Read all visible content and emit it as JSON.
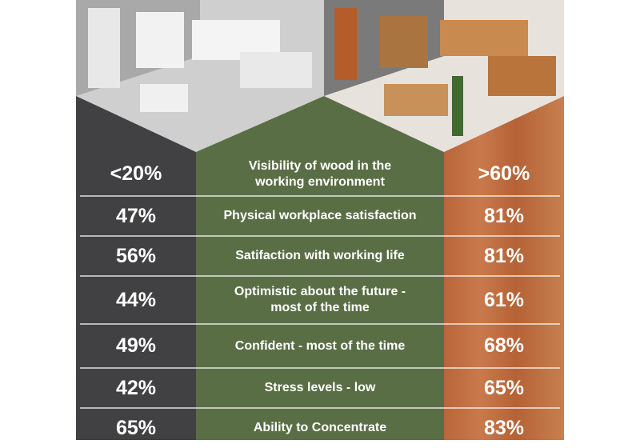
{
  "table": {
    "header": {
      "left": "<20%",
      "label": "Visibility of wood in the\nworking environment",
      "right": ">60%"
    },
    "rows": [
      {
        "left": "47%",
        "label": "Physical workplace satisfaction",
        "right": "81%"
      },
      {
        "left": "56%",
        "label": "Satifaction with working life",
        "right": "81%"
      },
      {
        "left": "44%",
        "label": "Optimistic about the future -\nmost of the time",
        "right": "61%"
      },
      {
        "left": "49%",
        "label": "Confident - most of the time",
        "right": "68%"
      },
      {
        "left": "42%",
        "label": "Stress levels - low",
        "right": "65%"
      },
      {
        "left": "65%",
        "label": "Ability to Concentrate",
        "right": "83%"
      }
    ]
  }
}
